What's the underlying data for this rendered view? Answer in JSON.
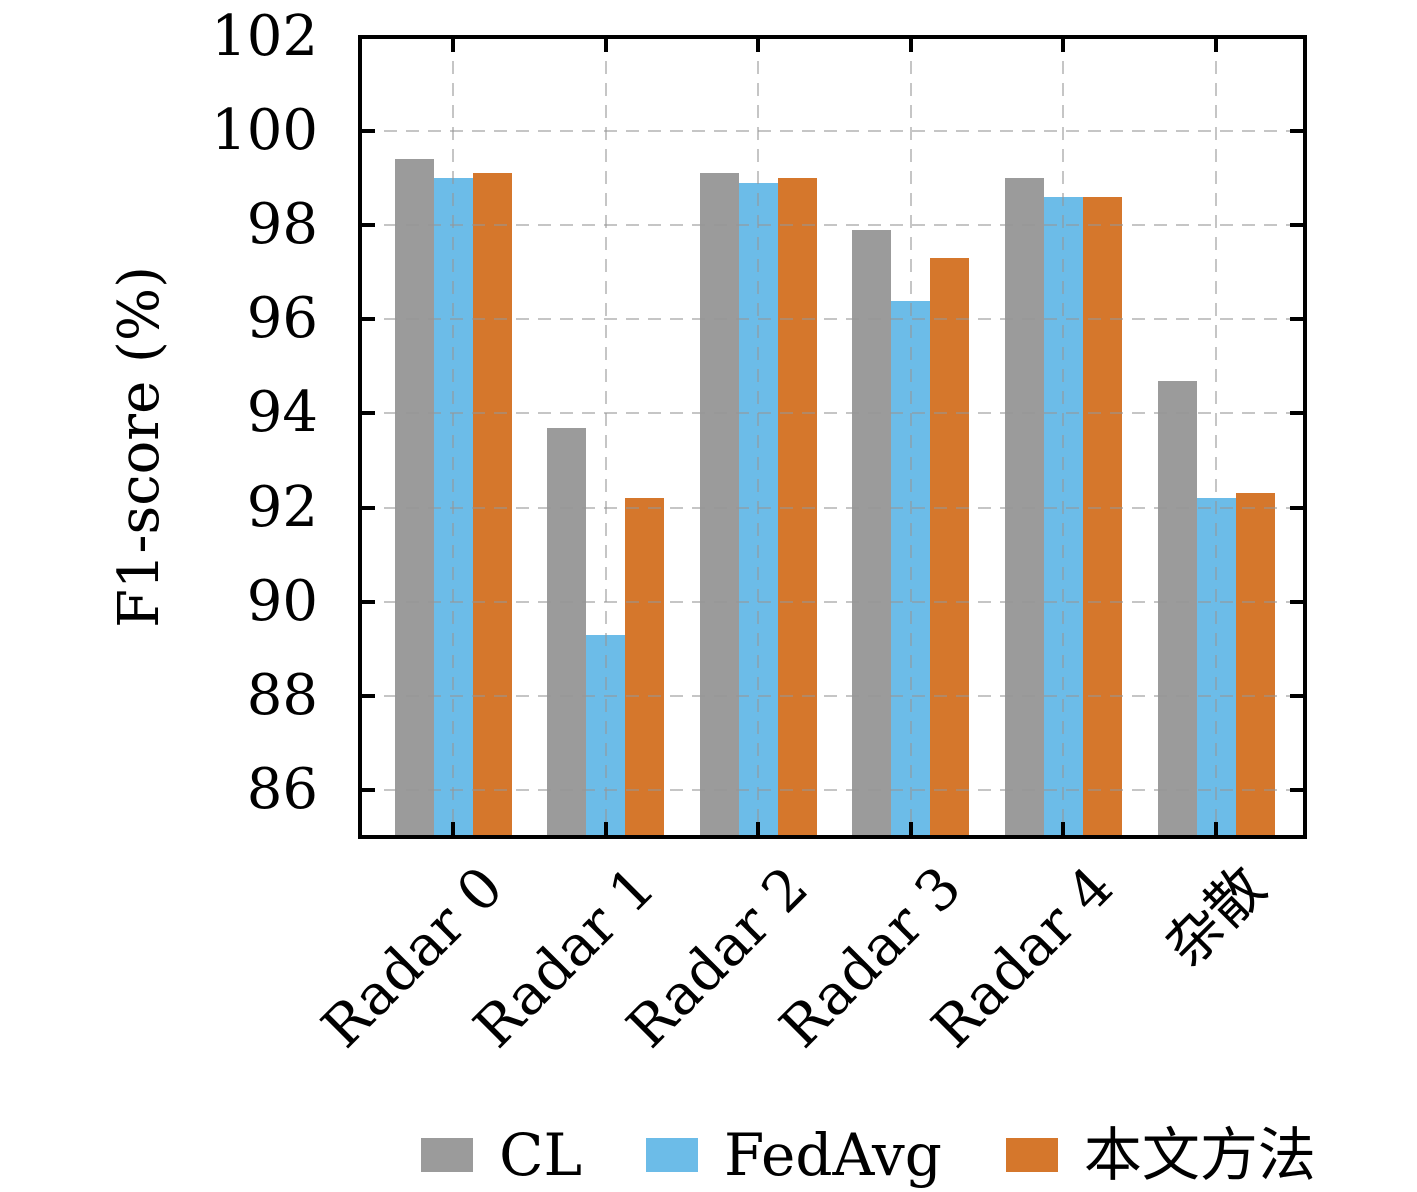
{
  "figure": {
    "background": "#FFFFFF",
    "title": ""
  },
  "chart_data": {
    "type": "bar",
    "categories": [
      "Radar 0",
      "Radar 1",
      "Radar 2",
      "Radar 3",
      "Radar 4",
      "杂散"
    ],
    "series": [
      {
        "name": "CL",
        "color": "#9B9B9B",
        "values": [
          99.4,
          93.7,
          99.1,
          97.9,
          99.0,
          94.7
        ]
      },
      {
        "name": "FedAvg",
        "color": "#6CBCE8",
        "values": [
          99.0,
          89.3,
          98.9,
          96.4,
          98.6,
          92.2
        ]
      },
      {
        "name": "本文方法",
        "color": "#D5772C",
        "values": [
          99.1,
          92.2,
          99.0,
          97.3,
          98.6,
          92.3
        ]
      }
    ],
    "title": "",
    "xlabel": "",
    "ylabel": "F1-score (%)",
    "ylim": [
      85,
      102
    ],
    "yticks": [
      86,
      88,
      90,
      92,
      94,
      96,
      98,
      100,
      102
    ],
    "grid": true,
    "grid_style": "dashed",
    "x_tick_rotation_deg": 45,
    "legend_position": "bottom"
  },
  "style": {
    "axis_color": "#000000",
    "grid_color": "#969696",
    "text_color": "#000000"
  }
}
